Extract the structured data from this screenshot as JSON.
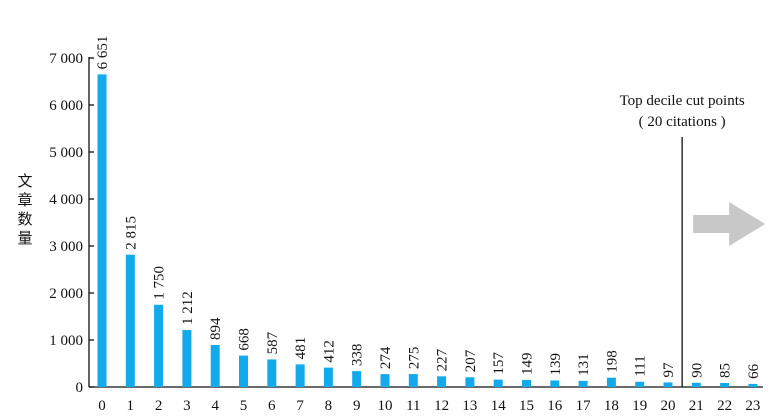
{
  "chart_data": {
    "type": "bar",
    "categories": [
      "0",
      "1",
      "2",
      "3",
      "4",
      "5",
      "6",
      "7",
      "8",
      "9",
      "10",
      "11",
      "12",
      "13",
      "14",
      "15",
      "16",
      "17",
      "18",
      "19",
      "20",
      "21",
      "22",
      "23"
    ],
    "values": [
      6651,
      2815,
      1750,
      1212,
      894,
      668,
      587,
      481,
      412,
      338,
      274,
      275,
      227,
      207,
      157,
      149,
      139,
      131,
      198,
      111,
      97,
      90,
      85,
      66
    ],
    "value_labels": [
      "6 651",
      "2 815",
      "1 750",
      "1 212",
      "894",
      "668",
      "587",
      "481",
      "412",
      "338",
      "274",
      "275",
      "227",
      "207",
      "157",
      "149",
      "139",
      "131",
      "198",
      "111",
      "97",
      "90",
      "85",
      "66"
    ],
    "ylabel": "文章数量",
    "ylim": [
      0,
      7000
    ],
    "yticks": [
      0,
      1000,
      2000,
      3000,
      4000,
      5000,
      6000,
      7000
    ],
    "ytick_labels": [
      "0",
      "1 000",
      "2 000",
      "3 000",
      "4 000",
      "5 000",
      "6 000",
      "7 000"
    ],
    "grid": false,
    "bar_color": "#12aaeb",
    "annotation": {
      "line1": "Top decile cut points",
      "line2": "( 20 citations )",
      "between_categories": [
        "20",
        "21"
      ],
      "arrow_color": "#c8c8c8",
      "arrow_direction": "right"
    }
  }
}
